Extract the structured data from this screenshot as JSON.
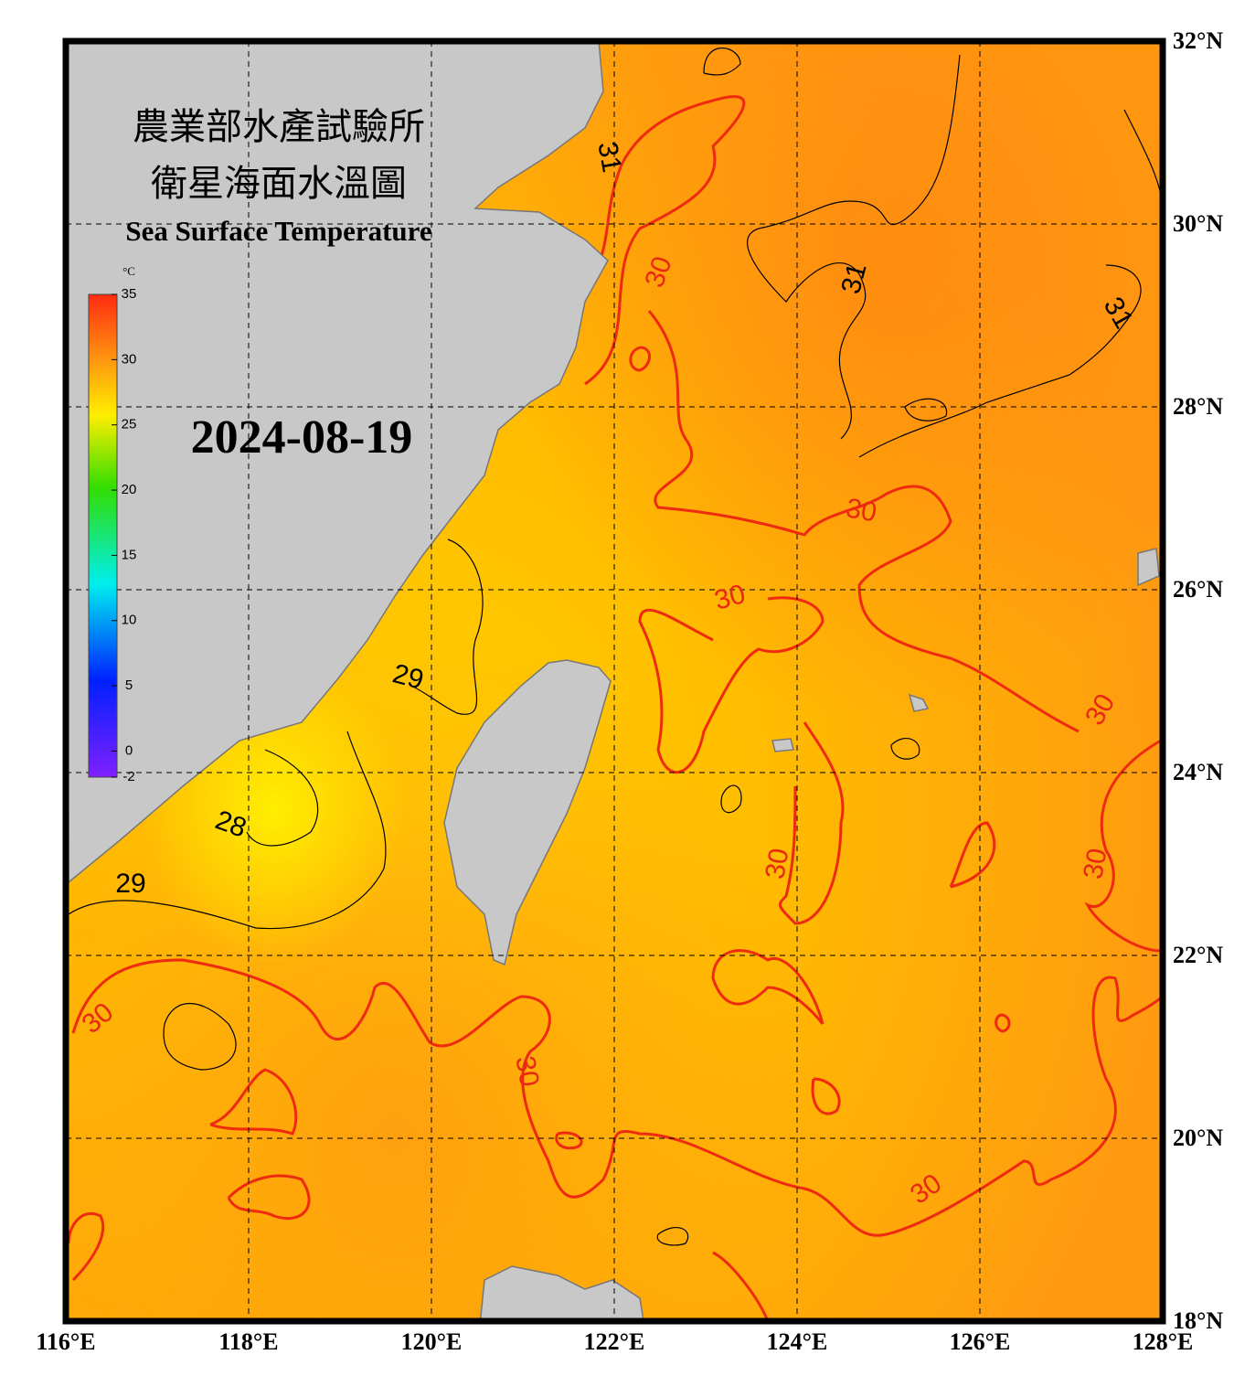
{
  "title": {
    "line1": "農業部水產試驗所",
    "line2": "衛星海面水溫圖",
    "english": "Sea Surface Temperature"
  },
  "date": "2024-08-19",
  "colorbar": {
    "unit": "°C",
    "range": [
      -2,
      35
    ],
    "ticks": [
      35,
      30,
      25,
      20,
      15,
      10,
      5,
      0,
      -2
    ]
  },
  "lon_range": [
    116,
    128
  ],
  "lat_range": [
    18,
    32
  ],
  "lon_ticks": [
    {
      "value": 116,
      "label": "116°E"
    },
    {
      "value": 118,
      "label": "118°E"
    },
    {
      "value": 120,
      "label": "120°E"
    },
    {
      "value": 122,
      "label": "122°E"
    },
    {
      "value": 124,
      "label": "124°E"
    },
    {
      "value": 126,
      "label": "126°E"
    },
    {
      "value": 128,
      "label": "128°E"
    }
  ],
  "lat_ticks": [
    {
      "value": 32,
      "label": "32°N"
    },
    {
      "value": 30,
      "label": "30°N"
    },
    {
      "value": 28,
      "label": "28°N"
    },
    {
      "value": 26,
      "label": "26°N"
    },
    {
      "value": 24,
      "label": "24°N"
    },
    {
      "value": 22,
      "label": "22°N"
    },
    {
      "value": 20,
      "label": "20°N"
    },
    {
      "value": 18,
      "label": "18°N"
    }
  ],
  "contour_labels": [
    31,
    30,
    31,
    31,
    30,
    30,
    29,
    30,
    28,
    30,
    30,
    29,
    30,
    30,
    30
  ]
}
